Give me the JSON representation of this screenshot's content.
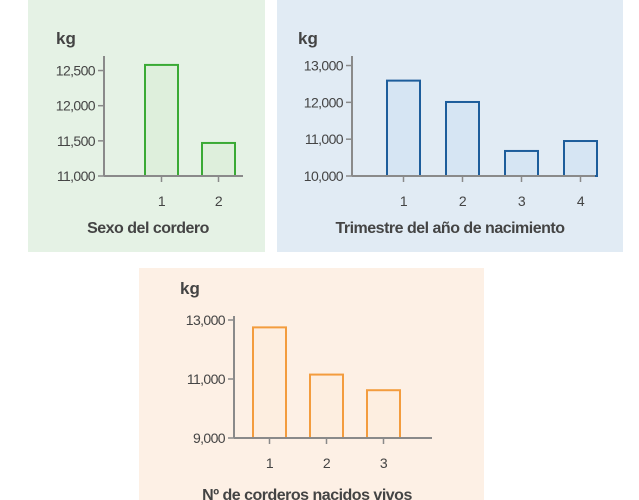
{
  "charts": [
    {
      "title": "Sexo del cordero",
      "unit": "kg",
      "color": "#3aaa35",
      "fill": "#deefdc",
      "panel_bg": "#e5f2e5",
      "yticks": [
        11000,
        11500,
        12000,
        12500
      ],
      "ytick_labels": [
        "11,000",
        "11,500",
        "12,000",
        "12,500"
      ]
    },
    {
      "title": "Trimestre del año de nacimiento",
      "unit": "kg",
      "color": "#1d5d9b",
      "fill": "#d6e5f3",
      "panel_bg": "#e1ebf4",
      "yticks": [
        10000,
        11000,
        12000,
        13000
      ],
      "ytick_labels": [
        "10,000",
        "11,000",
        "12,000",
        "13,000"
      ]
    },
    {
      "title": "Nº de corderos nacidos vivos",
      "unit": "kg",
      "color": "#f39c3e",
      "fill": "#fdeee0",
      "panel_bg": "#fdf0e5",
      "yticks": [
        9000,
        11000,
        13000
      ],
      "ytick_labels": [
        "9,000",
        "11,000",
        "13,000"
      ]
    }
  ],
  "chart_data": [
    {
      "type": "bar",
      "title": "",
      "xlabel": "Sexo del cordero",
      "ylabel": "kg",
      "categories": [
        "1",
        "2"
      ],
      "values": [
        12580,
        11470
      ],
      "ylim": [
        11000,
        12650
      ],
      "grid": false,
      "legend": "none"
    },
    {
      "type": "bar",
      "title": "",
      "xlabel": "Trimestre del año de nacimiento",
      "ylabel": "kg",
      "categories": [
        "1",
        "2",
        "3",
        "4"
      ],
      "values": [
        12590,
        12010,
        10680,
        10950
      ],
      "ylim": [
        10000,
        13150
      ],
      "grid": false,
      "legend": "none"
    },
    {
      "type": "bar",
      "title": "",
      "xlabel": "Nº de corderos nacidos vivos",
      "ylabel": "kg",
      "categories": [
        "1",
        "2",
        "3"
      ],
      "values": [
        12750,
        11150,
        10620
      ],
      "ylim": [
        9000,
        13000
      ],
      "grid": false,
      "legend": "none"
    }
  ]
}
